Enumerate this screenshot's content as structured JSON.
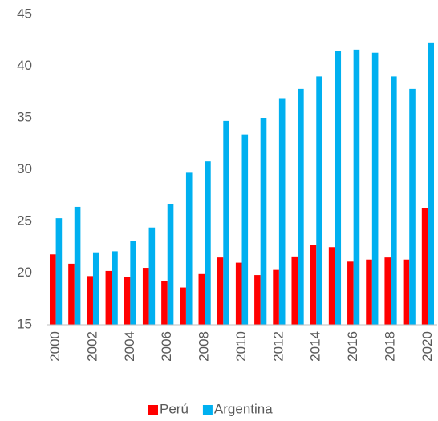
{
  "chart_data": {
    "type": "bar",
    "categories": [
      "2000",
      null,
      "2002",
      null,
      "2004",
      null,
      "2006",
      null,
      "2008",
      null,
      "2010",
      null,
      "2012",
      null,
      "2014",
      null,
      "2016",
      null,
      "2018",
      null,
      "2020"
    ],
    "series": [
      {
        "name": "Perú",
        "color": "#ff0000",
        "values": [
          21.8,
          20.9,
          19.7,
          20.2,
          19.6,
          20.5,
          19.2,
          18.6,
          19.9,
          21.5,
          21.0,
          19.8,
          20.3,
          21.6,
          22.7,
          22.5,
          21.1,
          21.3,
          21.5,
          21.3,
          26.3
        ]
      },
      {
        "name": "Argentina",
        "color": "#00b0f0",
        "values": [
          25.3,
          26.4,
          22.0,
          22.1,
          23.1,
          24.4,
          26.7,
          29.7,
          30.8,
          34.7,
          33.4,
          35.0,
          36.9,
          37.8,
          39.0,
          41.5,
          41.6,
          41.3,
          39.0,
          37.8,
          42.3
        ]
      }
    ],
    "ylim": [
      15,
      45
    ],
    "yticks": [
      15,
      20,
      25,
      30,
      35,
      40,
      45
    ],
    "grid": false,
    "legend": "bottom"
  }
}
